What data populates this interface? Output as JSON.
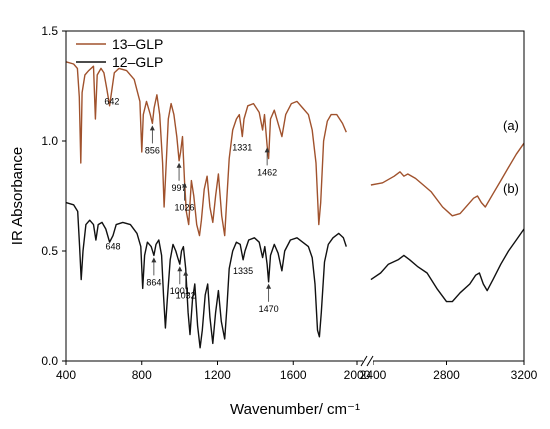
{
  "chart_data": {
    "type": "line",
    "xlabel": "Wavenumber/ cm⁻¹",
    "ylabel": "IR Absorbance",
    "ylim": [
      0.0,
      1.5
    ],
    "y_ticks": [
      "0.0",
      "0.5",
      "1.0",
      "1.5"
    ],
    "x_axis_break": [
      2000,
      2400
    ],
    "x_ticks": [
      "400",
      "800",
      "1200",
      "1600",
      "2000",
      "2400",
      "2800",
      "3200"
    ],
    "grid": false,
    "legend_position": "top-left",
    "series": [
      {
        "name": "13–GLP",
        "label": "(a)",
        "color": "#a0522d",
        "segments": [
          [
            [
              400,
              1.36
            ],
            [
              440,
              1.35
            ],
            [
              460,
              1.33
            ],
            [
              470,
              1.2
            ],
            [
              478,
              0.9
            ],
            [
              485,
              1.22
            ],
            [
              500,
              1.3
            ],
            [
              520,
              1.32
            ],
            [
              545,
              1.34
            ],
            [
              555,
              1.1
            ],
            [
              565,
              1.3
            ],
            [
              585,
              1.33
            ],
            [
              600,
              1.31
            ],
            [
              615,
              1.24
            ],
            [
              630,
              1.16
            ],
            [
              642,
              1.23
            ],
            [
              655,
              1.31
            ],
            [
              680,
              1.33
            ],
            [
              720,
              1.32
            ],
            [
              760,
              1.28
            ],
            [
              790,
              1.18
            ],
            [
              800,
              0.95
            ],
            [
              808,
              1.12
            ],
            [
              825,
              1.18
            ],
            [
              845,
              1.12
            ],
            [
              856,
              1.08
            ],
            [
              865,
              1.15
            ],
            [
              880,
              1.21
            ],
            [
              895,
              1.12
            ],
            [
              910,
              0.9
            ],
            [
              918,
              0.7
            ],
            [
              925,
              0.82
            ],
            [
              940,
              1.1
            ],
            [
              955,
              1.17
            ],
            [
              970,
              1.12
            ],
            [
              985,
              1.02
            ],
            [
              997,
              0.91
            ],
            [
              1005,
              0.95
            ],
            [
              1015,
              1.02
            ],
            [
              1026,
              0.82
            ],
            [
              1035,
              0.68
            ],
            [
              1048,
              0.62
            ],
            [
              1062,
              0.82
            ],
            [
              1075,
              0.75
            ],
            [
              1090,
              0.62
            ],
            [
              1105,
              0.57
            ],
            [
              1115,
              0.64
            ],
            [
              1130,
              0.78
            ],
            [
              1145,
              0.84
            ],
            [
              1160,
              0.7
            ],
            [
              1175,
              0.63
            ],
            [
              1190,
              0.75
            ],
            [
              1205,
              0.85
            ],
            [
              1222,
              0.66
            ],
            [
              1238,
              0.57
            ],
            [
              1248,
              0.72
            ],
            [
              1262,
              0.92
            ],
            [
              1280,
              1.05
            ],
            [
              1300,
              1.1
            ],
            [
              1315,
              1.12
            ],
            [
              1325,
              1.06
            ],
            [
              1331,
              1.02
            ],
            [
              1340,
              1.1
            ],
            [
              1360,
              1.16
            ],
            [
              1390,
              1.17
            ],
            [
              1420,
              1.13
            ],
            [
              1438,
              1.05
            ],
            [
              1448,
              1.12
            ],
            [
              1462,
              0.98
            ],
            [
              1470,
              0.92
            ],
            [
              1480,
              1.1
            ],
            [
              1500,
              1.14
            ],
            [
              1520,
              1.08
            ],
            [
              1540,
              1.02
            ],
            [
              1560,
              1.12
            ],
            [
              1590,
              1.17
            ],
            [
              1620,
              1.18
            ],
            [
              1650,
              1.15
            ],
            [
              1680,
              1.12
            ],
            [
              1700,
              1.05
            ],
            [
              1720,
              0.9
            ],
            [
              1735,
              0.62
            ],
            [
              1745,
              0.72
            ],
            [
              1760,
              1.0
            ],
            [
              1780,
              1.09
            ],
            [
              1800,
              1.12
            ],
            [
              1830,
              1.12
            ],
            [
              1860,
              1.08
            ],
            [
              1880,
              1.04
            ]
          ],
          [
            [
              2410,
              0.8
            ],
            [
              2470,
              0.81
            ],
            [
              2530,
              0.84
            ],
            [
              2560,
              0.86
            ],
            [
              2580,
              0.84
            ],
            [
              2600,
              0.85
            ],
            [
              2640,
              0.83
            ],
            [
              2680,
              0.8
            ],
            [
              2720,
              0.77
            ],
            [
              2780,
              0.7
            ],
            [
              2830,
              0.66
            ],
            [
              2870,
              0.67
            ],
            [
              2910,
              0.71
            ],
            [
              2940,
              0.74
            ],
            [
              2960,
              0.75
            ],
            [
              2980,
              0.72
            ],
            [
              3000,
              0.7
            ],
            [
              3040,
              0.76
            ],
            [
              3080,
              0.82
            ],
            [
              3120,
              0.88
            ],
            [
              3160,
              0.94
            ],
            [
              3200,
              0.99
            ]
          ]
        ]
      },
      {
        "name": "12–GLP",
        "label": "(b)",
        "color": "#111111",
        "segments": [
          [
            [
              400,
              0.72
            ],
            [
              440,
              0.71
            ],
            [
              462,
              0.68
            ],
            [
              472,
              0.52
            ],
            [
              480,
              0.37
            ],
            [
              490,
              0.5
            ],
            [
              505,
              0.62
            ],
            [
              525,
              0.64
            ],
            [
              545,
              0.62
            ],
            [
              558,
              0.55
            ],
            [
              570,
              0.62
            ],
            [
              590,
              0.63
            ],
            [
              610,
              0.6
            ],
            [
              630,
              0.54
            ],
            [
              648,
              0.57
            ],
            [
              665,
              0.62
            ],
            [
              700,
              0.63
            ],
            [
              740,
              0.62
            ],
            [
              775,
              0.58
            ],
            [
              795,
              0.52
            ],
            [
              805,
              0.33
            ],
            [
              815,
              0.48
            ],
            [
              830,
              0.54
            ],
            [
              850,
              0.52
            ],
            [
              864,
              0.48
            ],
            [
              875,
              0.53
            ],
            [
              890,
              0.55
            ],
            [
              905,
              0.48
            ],
            [
              915,
              0.3
            ],
            [
              925,
              0.15
            ],
            [
              935,
              0.28
            ],
            [
              950,
              0.46
            ],
            [
              965,
              0.53
            ],
            [
              980,
              0.5
            ],
            [
              990,
              0.47
            ],
            [
              1001,
              0.44
            ],
            [
              1010,
              0.5
            ],
            [
              1020,
              0.52
            ],
            [
              1032,
              0.42
            ],
            [
              1045,
              0.22
            ],
            [
              1055,
              0.12
            ],
            [
              1068,
              0.28
            ],
            [
              1080,
              0.35
            ],
            [
              1095,
              0.16
            ],
            [
              1108,
              0.06
            ],
            [
              1120,
              0.14
            ],
            [
              1135,
              0.3
            ],
            [
              1148,
              0.35
            ],
            [
              1160,
              0.2
            ],
            [
              1175,
              0.08
            ],
            [
              1190,
              0.22
            ],
            [
              1205,
              0.32
            ],
            [
              1220,
              0.18
            ],
            [
              1238,
              0.1
            ],
            [
              1250,
              0.25
            ],
            [
              1262,
              0.42
            ],
            [
              1280,
              0.5
            ],
            [
              1300,
              0.54
            ],
            [
              1320,
              0.53
            ],
            [
              1335,
              0.46
            ],
            [
              1345,
              0.5
            ],
            [
              1365,
              0.55
            ],
            [
              1395,
              0.56
            ],
            [
              1420,
              0.54
            ],
            [
              1438,
              0.47
            ],
            [
              1450,
              0.52
            ],
            [
              1462,
              0.44
            ],
            [
              1470,
              0.36
            ],
            [
              1480,
              0.48
            ],
            [
              1500,
              0.53
            ],
            [
              1520,
              0.49
            ],
            [
              1540,
              0.41
            ],
            [
              1555,
              0.5
            ],
            [
              1585,
              0.55
            ],
            [
              1620,
              0.56
            ],
            [
              1650,
              0.54
            ],
            [
              1680,
              0.52
            ],
            [
              1700,
              0.47
            ],
            [
              1715,
              0.35
            ],
            [
              1728,
              0.14
            ],
            [
              1738,
              0.11
            ],
            [
              1748,
              0.22
            ],
            [
              1765,
              0.45
            ],
            [
              1785,
              0.53
            ],
            [
              1810,
              0.56
            ],
            [
              1840,
              0.58
            ],
            [
              1865,
              0.56
            ],
            [
              1880,
              0.52
            ]
          ],
          [
            [
              2410,
              0.37
            ],
            [
              2460,
              0.4
            ],
            [
              2500,
              0.44
            ],
            [
              2550,
              0.46
            ],
            [
              2580,
              0.48
            ],
            [
              2610,
              0.46
            ],
            [
              2650,
              0.43
            ],
            [
              2700,
              0.4
            ],
            [
              2750,
              0.33
            ],
            [
              2800,
              0.27
            ],
            [
              2830,
              0.27
            ],
            [
              2870,
              0.31
            ],
            [
              2920,
              0.35
            ],
            [
              2950,
              0.39
            ],
            [
              2970,
              0.4
            ],
            [
              2990,
              0.35
            ],
            [
              3010,
              0.32
            ],
            [
              3040,
              0.37
            ],
            [
              3080,
              0.44
            ],
            [
              3120,
              0.5
            ],
            [
              3160,
              0.55
            ],
            [
              3200,
              0.6
            ]
          ]
        ]
      }
    ],
    "annotations": [
      {
        "text": "642",
        "series": 0,
        "x": 642
      },
      {
        "text": "856",
        "series": 0,
        "x": 856,
        "arrow": true
      },
      {
        "text": "997",
        "series": 0,
        "x": 997,
        "arrow": true
      },
      {
        "text": "1026",
        "series": 0,
        "x": 1026,
        "arrow": true
      },
      {
        "text": "1331",
        "series": 0,
        "x": 1331
      },
      {
        "text": "1462",
        "series": 0,
        "x": 1462,
        "arrow": true
      },
      {
        "text": "648",
        "series": 1,
        "x": 648
      },
      {
        "text": "864",
        "series": 1,
        "x": 864,
        "arrow": true
      },
      {
        "text": "1001",
        "series": 1,
        "x": 1001,
        "arrow": true
      },
      {
        "text": "1032",
        "series": 1,
        "x": 1032,
        "arrow": true
      },
      {
        "text": "1335",
        "series": 1,
        "x": 1335
      },
      {
        "text": "1470",
        "series": 1,
        "x": 1470,
        "arrow": true
      }
    ]
  }
}
